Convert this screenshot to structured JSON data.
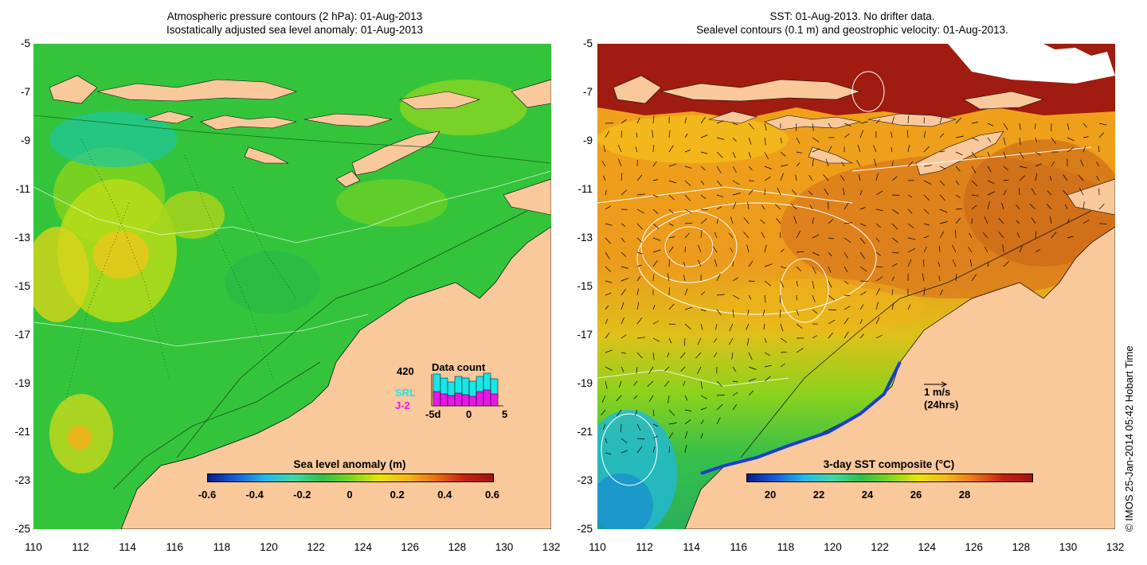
{
  "left_panel": {
    "title_line1": "Atmospheric pressure contours (2 hPa): 01-Aug-2013",
    "title_line2": "Isostatically adjusted sea level anomaly: 01-Aug-2013",
    "colorbar_label": "Sea level anomaly (m)",
    "colorbar_ticks": [
      "-0.6",
      "-0.4",
      "-0.2",
      "0",
      "0.2",
      "0.4",
      "0.6"
    ],
    "inset": {
      "count": "420",
      "title": "Data count",
      "legend_srl": "SRL",
      "legend_j2": "J-2",
      "axis_ticks": [
        "-5d",
        "0",
        "5"
      ],
      "srl_color": "#19e6e6",
      "j2_color": "#e619e6"
    }
  },
  "right_panel": {
    "title_line1": "SST: 01-Aug-2013. No drifter data.",
    "title_line2": "Sealevel contours (0.1 m) and geostrophic velocity: 01-Aug-2013.",
    "colorbar_label": "3-day SST composite (°C)",
    "colorbar_ticks": [
      "20",
      "22",
      "24",
      "26",
      "28"
    ],
    "scale_label": "1 m/s",
    "scale_sublabel": "(24hrs)"
  },
  "lat_labels": [
    "-5",
    "-7",
    "-9",
    "-11",
    "-13",
    "-15",
    "-17",
    "-19",
    "-21",
    "-23",
    "-25"
  ],
  "lon_labels": [
    "110",
    "112",
    "114",
    "116",
    "118",
    "120",
    "122",
    "124",
    "126",
    "128",
    "130",
    "132"
  ],
  "credit": "© IMOS 25-Jan-2014 05:42 Hobart Time",
  "colors": {
    "land": "#f9c89b",
    "sla_ocean": "#2fc44a",
    "sst_warm": "#e8891c",
    "sst_hot": "#a01c10"
  }
}
